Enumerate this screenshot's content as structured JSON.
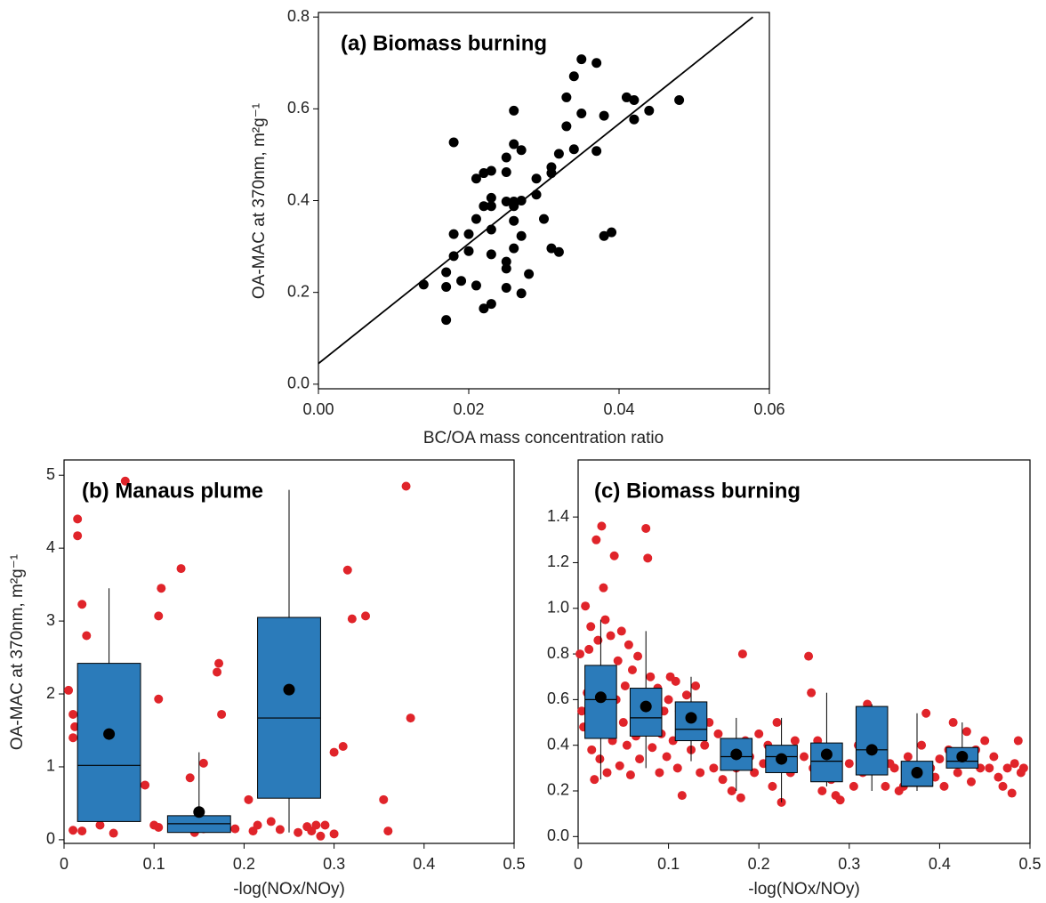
{
  "chart_data": [
    {
      "type": "scatter",
      "title": "(a) Biomass burning",
      "x_label": "BC/OA mass concentration ratio",
      "y_label": "OA-MAC at 370nm, m²g⁻¹",
      "x": [
        0.014,
        0.017,
        0.017,
        0.017,
        0.018,
        0.018,
        0.018,
        0.019,
        0.02,
        0.02,
        0.021,
        0.021,
        0.021,
        0.022,
        0.022,
        0.022,
        0.023,
        0.023,
        0.023,
        0.023,
        0.023,
        0.023,
        0.025,
        0.025,
        0.025,
        0.025,
        0.025,
        0.026,
        0.025,
        0.026,
        0.026,
        0.026,
        0.026,
        0.027,
        0.026,
        0.027,
        0.027,
        0.027,
        0.028,
        0.029,
        0.029,
        0.03,
        0.031,
        0.031,
        0.031,
        0.032,
        0.032,
        0.033,
        0.033,
        0.034,
        0.034,
        0.035,
        0.035,
        0.037,
        0.037,
        0.038,
        0.038,
        0.039,
        0.041,
        0.042,
        0.042,
        0.044,
        0.048
      ],
      "values": [
        0.217,
        0.244,
        0.212,
        0.14,
        0.327,
        0.279,
        0.527,
        0.225,
        0.29,
        0.327,
        0.448,
        0.36,
        0.215,
        0.388,
        0.165,
        0.46,
        0.406,
        0.283,
        0.337,
        0.175,
        0.465,
        0.388,
        0.398,
        0.267,
        0.252,
        0.462,
        0.494,
        0.596,
        0.21,
        0.388,
        0.356,
        0.523,
        0.296,
        0.51,
        0.398,
        0.198,
        0.323,
        0.4,
        0.24,
        0.413,
        0.448,
        0.36,
        0.473,
        0.296,
        0.46,
        0.288,
        0.502,
        0.562,
        0.625,
        0.512,
        0.671,
        0.708,
        0.59,
        0.7,
        0.508,
        0.323,
        0.585,
        0.331,
        0.625,
        0.619,
        0.577,
        0.596,
        0.619
      ],
      "color": "#000000",
      "fit_line": {
        "x": [
          0,
          0.0578
        ],
        "values": [
          0.045,
          0.8
        ],
        "color": "#000000"
      },
      "xlim": [
        0,
        0.06
      ],
      "ylim": [
        -0.01,
        0.81
      ],
      "xticks": [
        {
          "value": 0,
          "label": "0.00"
        },
        {
          "value": 0.02,
          "label": "0.02"
        },
        {
          "value": 0.04,
          "label": "0.04"
        },
        {
          "value": 0.06,
          "label": "0.06"
        }
      ],
      "yticks": [
        {
          "value": 0,
          "label": "0.0"
        },
        0.2,
        0.4,
        0.6,
        0.8
      ]
    },
    {
      "type": "box",
      "title": "(b) Manaus plume",
      "x_label": "-log(NOx/NOy)",
      "y_label": "OA-MAC at 370nm, m²g⁻¹",
      "points": {
        "x": [
          0.005,
          0.01,
          0.01,
          0.012,
          0.015,
          0.015,
          0.02,
          0.025,
          0.02,
          0.01,
          0.03,
          0.04,
          0.055,
          0.068,
          0.09,
          0.1,
          0.105,
          0.105,
          0.108,
          0.105,
          0.13,
          0.13,
          0.14,
          0.145,
          0.155,
          0.155,
          0.17,
          0.172,
          0.175,
          0.18,
          0.19,
          0.205,
          0.21,
          0.215,
          0.22,
          0.23,
          0.24,
          0.26,
          0.27,
          0.275,
          0.28,
          0.285,
          0.29,
          0.3,
          0.3,
          0.31,
          0.315,
          0.32,
          0.335,
          0.355,
          0.36,
          0.38,
          0.385
        ],
        "values": [
          2.05,
          1.4,
          1.72,
          1.55,
          4.4,
          4.17,
          3.23,
          2.8,
          0.12,
          0.13,
          0.35,
          0.2,
          0.09,
          4.92,
          0.75,
          0.2,
          3.07,
          1.93,
          3.45,
          0.17,
          0.2,
          3.72,
          0.85,
          0.1,
          0.15,
          1.05,
          2.3,
          2.42,
          1.72,
          0.2,
          0.15,
          0.55,
          0.12,
          0.2,
          0.95,
          0.25,
          0.14,
          0.1,
          0.18,
          0.12,
          0.2,
          0.05,
          0.2,
          1.2,
          0.08,
          1.28,
          3.7,
          3.03,
          3.07,
          0.55,
          0.12,
          4.85,
          1.67
        ],
        "color": "#e0242a"
      },
      "boxes": {
        "x": [
          0.05,
          0.15,
          0.25
        ],
        "whisker_low": [
          0.25,
          0.1,
          0.1
        ],
        "q1": [
          0.25,
          0.1,
          0.57
        ],
        "median": [
          1.02,
          0.22,
          1.67
        ],
        "q3": [
          2.42,
          0.33,
          3.05
        ],
        "whisker_high": [
          3.45,
          1.2,
          4.8
        ],
        "mean": [
          1.45,
          0.38,
          2.06
        ],
        "color": "#2b7bba",
        "mean_color": "#000000"
      },
      "xlim": [
        0,
        0.5
      ],
      "ylim": [
        -0.05,
        5.21
      ],
      "xticks": [
        0,
        0.1,
        0.2,
        0.3,
        0.4,
        0.5
      ],
      "yticks": [
        0,
        1,
        2,
        3,
        4,
        5
      ]
    },
    {
      "type": "box",
      "title": "(c) Biomass burning",
      "x_label": "-log(NOx/NOy)",
      "points": {
        "x": [
          0.002,
          0.004,
          0.006,
          0.008,
          0.01,
          0.012,
          0.014,
          0.015,
          0.016,
          0.018,
          0.02,
          0.02,
          0.022,
          0.024,
          0.026,
          0.028,
          0.03,
          0.03,
          0.032,
          0.034,
          0.036,
          0.038,
          0.04,
          0.042,
          0.044,
          0.046,
          0.048,
          0.05,
          0.052,
          0.054,
          0.056,
          0.058,
          0.06,
          0.062,
          0.064,
          0.066,
          0.068,
          0.07,
          0.072,
          0.075,
          0.077,
          0.078,
          0.08,
          0.082,
          0.085,
          0.088,
          0.09,
          0.092,
          0.095,
          0.098,
          0.1,
          0.102,
          0.105,
          0.108,
          0.11,
          0.112,
          0.115,
          0.118,
          0.12,
          0.125,
          0.128,
          0.13,
          0.135,
          0.14,
          0.145,
          0.15,
          0.155,
          0.16,
          0.165,
          0.17,
          0.175,
          0.18,
          0.182,
          0.185,
          0.19,
          0.195,
          0.2,
          0.205,
          0.21,
          0.215,
          0.22,
          0.225,
          0.23,
          0.235,
          0.24,
          0.25,
          0.255,
          0.258,
          0.26,
          0.265,
          0.27,
          0.275,
          0.28,
          0.285,
          0.29,
          0.3,
          0.305,
          0.31,
          0.315,
          0.32,
          0.325,
          0.33,
          0.34,
          0.345,
          0.35,
          0.355,
          0.36,
          0.365,
          0.37,
          0.38,
          0.385,
          0.39,
          0.395,
          0.4,
          0.405,
          0.41,
          0.415,
          0.42,
          0.425,
          0.43,
          0.435,
          0.44,
          0.445,
          0.45,
          0.455,
          0.46,
          0.465,
          0.47,
          0.475,
          0.48,
          0.483,
          0.487,
          0.49,
          0.493
        ],
        "values": [
          0.8,
          0.55,
          0.48,
          1.01,
          0.63,
          0.82,
          0.92,
          0.38,
          0.72,
          0.25,
          1.3,
          0.45,
          0.86,
          0.34,
          1.36,
          1.09,
          0.95,
          0.52,
          0.28,
          0.7,
          0.88,
          0.42,
          1.23,
          0.6,
          0.77,
          0.31,
          0.9,
          0.5,
          0.66,
          0.4,
          0.84,
          0.27,
          0.73,
          0.55,
          0.44,
          0.79,
          0.34,
          0.62,
          0.48,
          1.35,
          1.22,
          0.58,
          0.7,
          0.39,
          0.5,
          0.65,
          0.28,
          0.45,
          0.55,
          0.35,
          0.6,
          0.7,
          0.42,
          0.68,
          0.3,
          0.55,
          0.18,
          0.48,
          0.62,
          0.38,
          0.45,
          0.66,
          0.28,
          0.4,
          0.5,
          0.3,
          0.45,
          0.25,
          0.38,
          0.2,
          0.3,
          0.17,
          0.8,
          0.42,
          0.35,
          0.28,
          0.45,
          0.32,
          0.4,
          0.22,
          0.5,
          0.15,
          0.38,
          0.28,
          0.42,
          0.35,
          0.79,
          0.63,
          0.3,
          0.42,
          0.2,
          0.36,
          0.25,
          0.18,
          0.16,
          0.32,
          0.22,
          0.4,
          0.28,
          0.58,
          0.5,
          0.35,
          0.22,
          0.32,
          0.3,
          0.2,
          0.22,
          0.35,
          0.28,
          0.4,
          0.54,
          0.3,
          0.26,
          0.34,
          0.22,
          0.38,
          0.5,
          0.28,
          0.32,
          0.46,
          0.24,
          0.38,
          0.3,
          0.42,
          0.3,
          0.35,
          0.26,
          0.22,
          0.3,
          0.19,
          0.32,
          0.42,
          0.28,
          0.3
        ],
        "color": "#e0242a"
      },
      "boxes": {
        "x": [
          0.025,
          0.075,
          0.125,
          0.175,
          0.225,
          0.275,
          0.325,
          0.375,
          0.425
        ],
        "whisker_low": [
          0.25,
          0.3,
          0.33,
          0.2,
          0.15,
          0.22,
          0.2,
          0.2,
          0.3
        ],
        "q1": [
          0.43,
          0.44,
          0.42,
          0.29,
          0.28,
          0.24,
          0.27,
          0.22,
          0.3
        ],
        "median": [
          0.6,
          0.52,
          0.47,
          0.35,
          0.35,
          0.33,
          0.38,
          0.22,
          0.33
        ],
        "q3": [
          0.75,
          0.65,
          0.59,
          0.43,
          0.4,
          0.41,
          0.57,
          0.33,
          0.39
        ],
        "whisker_high": [
          0.95,
          0.9,
          0.7,
          0.52,
          0.52,
          0.63,
          0.58,
          0.54,
          0.5
        ],
        "mean": [
          0.61,
          0.57,
          0.52,
          0.36,
          0.34,
          0.36,
          0.38,
          0.28,
          0.35
        ],
        "color": "#2b7bba",
        "mean_color": "#000000"
      },
      "xlim": [
        0,
        0.5
      ],
      "ylim": [
        -0.03,
        1.65
      ],
      "xticks": [
        0,
        0.1,
        0.2,
        0.3,
        0.4,
        0.5
      ],
      "yticks": [
        {
          "value": 0,
          "label": "0.0"
        },
        0.2,
        0.4,
        0.6,
        0.8,
        {
          "value": 1,
          "label": "1.0"
        },
        1.2,
        1.4
      ]
    }
  ]
}
